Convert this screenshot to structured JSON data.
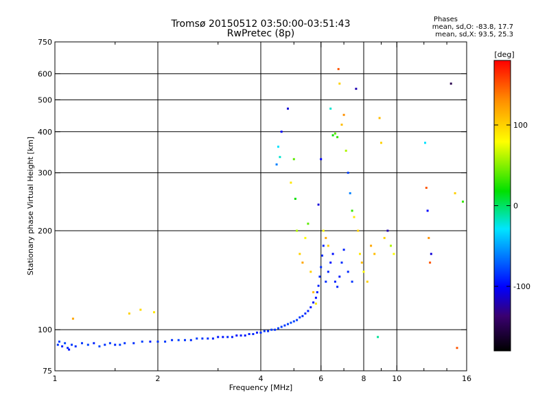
{
  "chart_data": {
    "type": "scatter",
    "title": "Tromsø 20150512 03:50:00-03:51:43",
    "subtitle": "RwPretec (8p)",
    "xlabel": "Frequency [MHz]",
    "ylabel": "Stationary phase Virtual Height [km]",
    "xscale": "log",
    "yscale": "log",
    "xlim": [
      1,
      16
    ],
    "ylim": [
      75,
      750
    ],
    "x_ticks": [
      1,
      2,
      4,
      6,
      8,
      10,
      16
    ],
    "x_tick_labels": [
      "1",
      "2",
      "4",
      "6",
      "8",
      "10",
      "16"
    ],
    "x_minor_ticks": [
      1.5,
      3,
      5,
      7,
      9,
      12,
      14
    ],
    "y_ticks": [
      75,
      100,
      200,
      300,
      400,
      500,
      600,
      750
    ],
    "y_tick_labels": [
      "75",
      "100",
      "200",
      "300",
      "400",
      "500",
      "600",
      "750"
    ],
    "x_grid": [
      2,
      4,
      6,
      8,
      10
    ],
    "y_grid": [
      100,
      200,
      300,
      400,
      500,
      600
    ],
    "grid": true,
    "phases": {
      "title": "Phases",
      "line_o": "mean, sd,O: -83.8, 17.7",
      "line_x": "mean, sd,X:  93.5, 25.3"
    },
    "colorbar": {
      "label": "[deg]",
      "range": [
        -180,
        180
      ],
      "ticks": [
        100,
        0,
        -100
      ],
      "tick_labels": [
        "100",
        "0",
        "-100"
      ]
    },
    "series": [
      {
        "name": "O-trace",
        "mean_phase": -83.8,
        "points": [
          [
            1.02,
            90,
            -85
          ],
          [
            1.03,
            92,
            -80
          ],
          [
            1.05,
            89,
            -90
          ],
          [
            1.07,
            91,
            -78
          ],
          [
            1.09,
            88,
            -88
          ],
          [
            1.1,
            87,
            -95
          ],
          [
            1.12,
            90,
            -82
          ],
          [
            1.15,
            89,
            -86
          ],
          [
            1.2,
            91,
            -84
          ],
          [
            1.25,
            90,
            -80
          ],
          [
            1.3,
            91,
            -90
          ],
          [
            1.35,
            89,
            -78
          ],
          [
            1.4,
            90,
            -85
          ],
          [
            1.45,
            91,
            -82
          ],
          [
            1.5,
            90,
            -88
          ],
          [
            1.55,
            90,
            -80
          ],
          [
            1.6,
            91,
            -84
          ],
          [
            1.7,
            91,
            -86
          ],
          [
            1.8,
            92,
            -80
          ],
          [
            1.9,
            92,
            -90
          ],
          [
            2.0,
            92,
            -84
          ],
          [
            2.1,
            92,
            -82
          ],
          [
            2.2,
            93,
            -86
          ],
          [
            2.3,
            93,
            -80
          ],
          [
            2.4,
            93,
            -84
          ],
          [
            2.5,
            93,
            -88
          ],
          [
            2.6,
            94,
            -82
          ],
          [
            2.7,
            94,
            -84
          ],
          [
            2.8,
            94,
            -86
          ],
          [
            2.9,
            94,
            -90
          ],
          [
            3.0,
            95,
            -92
          ],
          [
            3.1,
            95,
            -95
          ],
          [
            3.2,
            95,
            -88
          ],
          [
            3.3,
            95,
            -92
          ],
          [
            3.4,
            96,
            -96
          ],
          [
            3.5,
            96,
            -90
          ],
          [
            3.6,
            96,
            -94
          ],
          [
            3.7,
            97,
            -90
          ],
          [
            3.8,
            97,
            -88
          ],
          [
            3.9,
            98,
            -92
          ],
          [
            4.0,
            98,
            -86
          ],
          [
            4.1,
            99,
            -84
          ],
          [
            4.2,
            99,
            -88
          ],
          [
            4.3,
            100,
            -82
          ],
          [
            4.4,
            100,
            -86
          ],
          [
            4.5,
            101,
            -80
          ],
          [
            4.6,
            102,
            -82
          ],
          [
            4.7,
            103,
            -84
          ],
          [
            4.8,
            104,
            -80
          ],
          [
            4.9,
            105,
            -78
          ],
          [
            5.0,
            106,
            -80
          ],
          [
            5.1,
            107,
            -82
          ],
          [
            5.2,
            109,
            -84
          ],
          [
            5.3,
            110,
            -86
          ],
          [
            5.4,
            112,
            -88
          ],
          [
            5.5,
            114,
            -90
          ],
          [
            5.6,
            117,
            -92
          ],
          [
            5.7,
            121,
            -94
          ],
          [
            5.8,
            125,
            -96
          ],
          [
            5.85,
            130,
            -92
          ],
          [
            5.9,
            136,
            -90
          ],
          [
            5.95,
            145,
            -88
          ],
          [
            6.0,
            155,
            -86
          ],
          [
            6.05,
            168,
            -88
          ],
          [
            6.1,
            180,
            -90
          ],
          [
            6.2,
            140,
            -86
          ],
          [
            6.3,
            150,
            -90
          ],
          [
            6.4,
            160,
            -94
          ],
          [
            6.5,
            170,
            -96
          ],
          [
            6.6,
            140,
            -90
          ],
          [
            6.7,
            135,
            -88
          ],
          [
            6.8,
            145,
            -92
          ],
          [
            6.9,
            160,
            -86
          ],
          [
            7.0,
            175,
            -90
          ],
          [
            7.2,
            150,
            -88
          ],
          [
            7.4,
            140,
            -84
          ]
        ]
      },
      {
        "name": "X-trace",
        "mean_phase": 93.5,
        "points": [
          [
            1.13,
            108,
            120
          ],
          [
            1.65,
            112,
            100
          ],
          [
            1.78,
            115,
            96
          ],
          [
            1.95,
            113,
            90
          ],
          [
            4.45,
            318,
            -60
          ],
          [
            4.5,
            360,
            -30
          ],
          [
            4.55,
            335,
            -20
          ],
          [
            4.6,
            400,
            -100
          ],
          [
            4.8,
            470,
            -110
          ],
          [
            4.9,
            280,
            90
          ],
          [
            5.0,
            330,
            40
          ],
          [
            5.05,
            250,
            20
          ],
          [
            5.1,
            200,
            60
          ],
          [
            5.2,
            170,
            100
          ],
          [
            5.3,
            160,
            120
          ],
          [
            5.4,
            190,
            80
          ],
          [
            5.5,
            210,
            40
          ],
          [
            5.6,
            150,
            100
          ],
          [
            5.7,
            130,
            110
          ],
          [
            5.8,
            120,
            90
          ],
          [
            5.9,
            240,
            -110
          ],
          [
            6.0,
            330,
            -100
          ],
          [
            6.1,
            200,
            80
          ],
          [
            6.2,
            190,
            120
          ],
          [
            6.3,
            180,
            100
          ],
          [
            6.4,
            470,
            -20
          ],
          [
            6.5,
            390,
            20
          ],
          [
            6.6,
            395,
            40
          ],
          [
            6.7,
            385,
            30
          ],
          [
            6.75,
            620,
            150
          ],
          [
            6.8,
            560,
            100
          ],
          [
            6.9,
            420,
            110
          ],
          [
            7.0,
            450,
            130
          ],
          [
            7.1,
            350,
            60
          ],
          [
            7.2,
            300,
            -80
          ],
          [
            7.3,
            260,
            -60
          ],
          [
            7.4,
            230,
            30
          ],
          [
            7.5,
            220,
            90
          ],
          [
            7.6,
            540,
            -120
          ],
          [
            7.7,
            200,
            100
          ],
          [
            7.8,
            170,
            90
          ],
          [
            7.9,
            160,
            110
          ],
          [
            8.0,
            150,
            80
          ],
          [
            8.2,
            140,
            100
          ],
          [
            8.4,
            180,
            120
          ],
          [
            8.6,
            170,
            110
          ],
          [
            8.8,
            95,
            -10
          ],
          [
            8.9,
            440,
            110
          ],
          [
            9.0,
            370,
            100
          ],
          [
            9.2,
            190,
            100
          ],
          [
            9.4,
            200,
            -120
          ],
          [
            9.6,
            180,
            60
          ],
          [
            9.8,
            170,
            80
          ],
          [
            12.1,
            370,
            -30
          ],
          [
            12.2,
            270,
            150
          ],
          [
            12.3,
            230,
            -100
          ],
          [
            12.4,
            190,
            130
          ],
          [
            12.5,
            160,
            150
          ],
          [
            12.6,
            170,
            -110
          ],
          [
            14.4,
            560,
            -150
          ],
          [
            14.8,
            260,
            100
          ],
          [
            15.0,
            88,
            150
          ],
          [
            15.6,
            245,
            30
          ]
        ]
      }
    ]
  }
}
